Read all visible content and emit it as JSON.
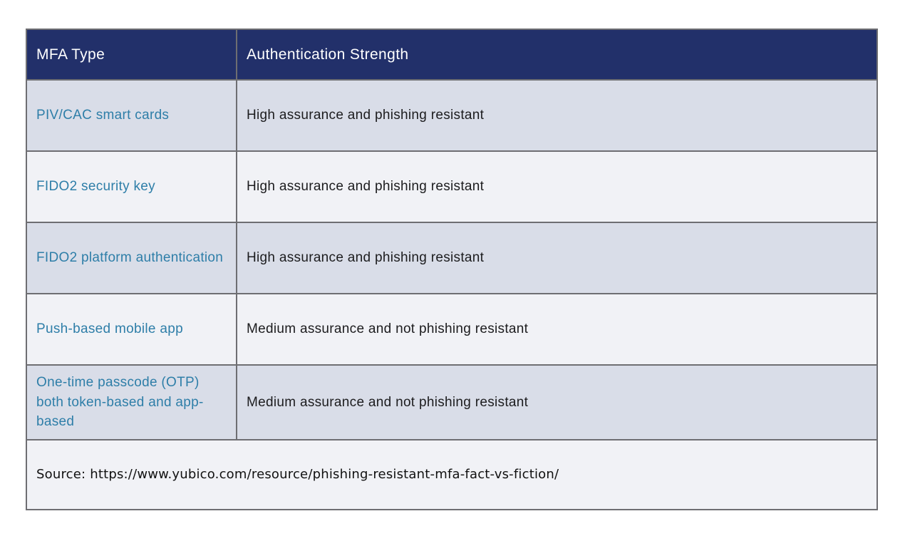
{
  "table": {
    "columns": [
      {
        "label": "MFA Type"
      },
      {
        "label": "Authentication Strength"
      }
    ],
    "rows": [
      {
        "mfa_type": "PIV/CAC smart cards",
        "strength": "High assurance and phishing resistant"
      },
      {
        "mfa_type": "FIDO2 security key",
        "strength": "High assurance and phishing resistant"
      },
      {
        "mfa_type": "FIDO2 platform authentication",
        "strength": "High assurance and phishing resistant"
      },
      {
        "mfa_type": "Push-based mobile app",
        "strength": "Medium assurance and not phishing resistant"
      },
      {
        "mfa_type": "One-time passcode (OTP) both token-based and app-based",
        "strength": "Medium assurance and not phishing resistant"
      }
    ],
    "source": "Source: https://www.yubico.com/resource/phishing-resistant-mfa-fact-vs-fiction/"
  },
  "colors": {
    "header_bg": "#22306a",
    "header_text": "#ffffff",
    "row_alt_bg": "#d9dde8",
    "row_bg": "#f1f2f6",
    "link_text": "#2e7ea8",
    "body_text": "#1c1c1e",
    "border": "#6e6e72",
    "page_bg": "#ffffff"
  }
}
